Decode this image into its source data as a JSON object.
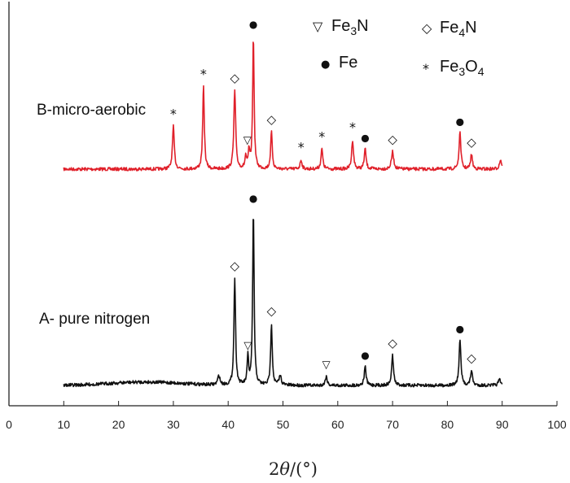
{
  "chart_data": {
    "type": "line",
    "xlabel_prefix": "2",
    "xlabel_theta": "θ",
    "xlabel_unit": "/(°)",
    "xlim": [
      0,
      100
    ],
    "xticks": [
      0,
      10,
      20,
      30,
      40,
      50,
      60,
      70,
      80,
      90,
      100
    ],
    "legend": [
      {
        "symbol": "▽",
        "name": "Fe",
        "sub": "3",
        "rest": "N",
        "position": "top-center"
      },
      {
        "symbol": "◇",
        "name": "Fe",
        "sub": "4",
        "rest": "N",
        "position": "top-right"
      },
      {
        "symbol": "●",
        "name": "Fe",
        "sub": "",
        "rest": "",
        "position": "top-center"
      },
      {
        "symbol": "*",
        "name": "Fe",
        "sub": "3",
        "rest": "O",
        "sub2": "4",
        "position": "top-right"
      }
    ],
    "series": [
      {
        "name": "B-micro-aerobic",
        "color": "#e0202a",
        "baseline": 0.62,
        "peaks": [
          [
            30.0,
            0.32,
            0.25
          ],
          [
            35.5,
            0.62,
            0.22
          ],
          [
            41.2,
            0.59,
            0.25
          ],
          [
            43.2,
            0.09,
            0.2
          ],
          [
            43.8,
            0.13,
            0.2
          ],
          [
            44.6,
            1.0,
            0.2
          ],
          [
            47.9,
            0.28,
            0.22
          ],
          [
            53.3,
            0.07,
            0.25
          ],
          [
            57.1,
            0.15,
            0.25
          ],
          [
            62.7,
            0.22,
            0.25
          ],
          [
            65.0,
            0.15,
            0.25
          ],
          [
            70.0,
            0.13,
            0.3
          ],
          [
            82.3,
            0.27,
            0.25
          ],
          [
            84.4,
            0.11,
            0.25
          ],
          [
            89.7,
            0.07,
            0.3
          ]
        ],
        "markers": [
          {
            "symbol": "*",
            "x": 30.0,
            "peak": 0.32
          },
          {
            "symbol": "*",
            "x": 35.5,
            "peak": 0.62
          },
          {
            "symbol": "◇",
            "x": 41.2,
            "peak": 0.59
          },
          {
            "symbol": "▽",
            "x": 43.5,
            "peak": 0.13
          },
          {
            "symbol": "●",
            "x": 44.6,
            "peak": 1.0
          },
          {
            "symbol": "◇",
            "x": 47.9,
            "peak": 0.28
          },
          {
            "symbol": "*",
            "x": 53.3,
            "peak": 0.07
          },
          {
            "symbol": "*",
            "x": 57.1,
            "peak": 0.15
          },
          {
            "symbol": "*",
            "x": 62.7,
            "peak": 0.22
          },
          {
            "symbol": "●",
            "x": 65.0,
            "peak": 0.15
          },
          {
            "symbol": "◇",
            "x": 70.0,
            "peak": 0.13
          },
          {
            "symbol": "●",
            "x": 82.3,
            "peak": 0.27
          },
          {
            "symbol": "◇",
            "x": 84.4,
            "peak": 0.11
          }
        ]
      },
      {
        "name": "A- pure nitrogen",
        "color": "#111111",
        "baseline": 0.0,
        "peaks": [
          [
            38.3,
            0.05,
            0.3
          ],
          [
            41.2,
            0.57,
            0.22
          ],
          [
            43.6,
            0.15,
            0.2
          ],
          [
            44.6,
            0.93,
            0.2
          ],
          [
            47.9,
            0.33,
            0.22
          ],
          [
            49.5,
            0.05,
            0.3
          ],
          [
            57.9,
            0.05,
            0.25
          ],
          [
            65.0,
            0.1,
            0.25
          ],
          [
            70.0,
            0.16,
            0.25
          ],
          [
            82.3,
            0.24,
            0.25
          ],
          [
            84.4,
            0.08,
            0.25
          ],
          [
            89.5,
            0.03,
            0.3
          ]
        ],
        "markers": [
          {
            "symbol": "◇",
            "x": 41.2,
            "peak": 0.57
          },
          {
            "symbol": "▽",
            "x": 43.6,
            "peak": 0.15
          },
          {
            "symbol": "●",
            "x": 44.6,
            "peak": 0.93
          },
          {
            "symbol": "◇",
            "x": 47.9,
            "peak": 0.33
          },
          {
            "symbol": "▽",
            "x": 57.9,
            "peak": 0.05
          },
          {
            "symbol": "●",
            "x": 65.0,
            "peak": 0.1
          },
          {
            "symbol": "◇",
            "x": 70.0,
            "peak": 0.16
          },
          {
            "symbol": "●",
            "x": 82.3,
            "peak": 0.24
          },
          {
            "symbol": "◇",
            "x": 84.4,
            "peak": 0.08
          }
        ]
      }
    ]
  }
}
